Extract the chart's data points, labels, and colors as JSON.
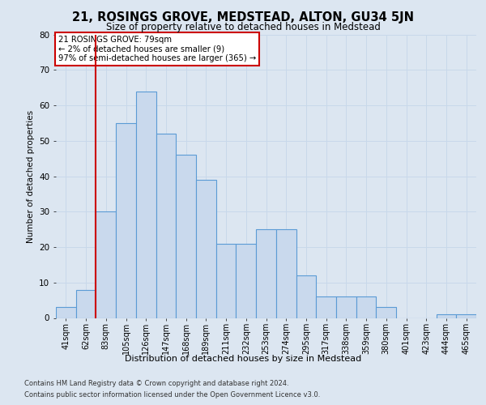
{
  "title1": "21, ROSINGS GROVE, MEDSTEAD, ALTON, GU34 5JN",
  "title2": "Size of property relative to detached houses in Medstead",
  "xlabel": "Distribution of detached houses by size in Medstead",
  "ylabel": "Number of detached properties",
  "footnote1": "Contains HM Land Registry data © Crown copyright and database right 2024.",
  "footnote2": "Contains public sector information licensed under the Open Government Licence v3.0.",
  "annotation_line1": "21 ROSINGS GROVE: 79sqm",
  "annotation_line2": "← 2% of detached houses are smaller (9)",
  "annotation_line3": "97% of semi-detached houses are larger (365) →",
  "bar_categories": [
    "41sqm",
    "62sqm",
    "83sqm",
    "105sqm",
    "126sqm",
    "147sqm",
    "168sqm",
    "189sqm",
    "211sqm",
    "232sqm",
    "253sqm",
    "274sqm",
    "295sqm",
    "317sqm",
    "338sqm",
    "359sqm",
    "380sqm",
    "401sqm",
    "423sqm",
    "444sqm",
    "465sqm"
  ],
  "bar_values": [
    3,
    8,
    30,
    55,
    64,
    52,
    46,
    39,
    21,
    21,
    25,
    25,
    12,
    6,
    6,
    6,
    3,
    0,
    0,
    1,
    1
  ],
  "bar_color": "#c9d9ed",
  "bar_edge_color": "#5b9bd5",
  "bar_edge_width": 0.8,
  "grid_color": "#c8d8ea",
  "background_color": "#dce6f1",
  "plot_bg_color": "#dce6f1",
  "annotation_box_color": "#ffffff",
  "annotation_box_edge": "#cc0000",
  "property_line_color": "#cc0000",
  "ylim": [
    0,
    80
  ],
  "yticks": [
    0,
    10,
    20,
    30,
    40,
    50,
    60,
    70,
    80
  ]
}
